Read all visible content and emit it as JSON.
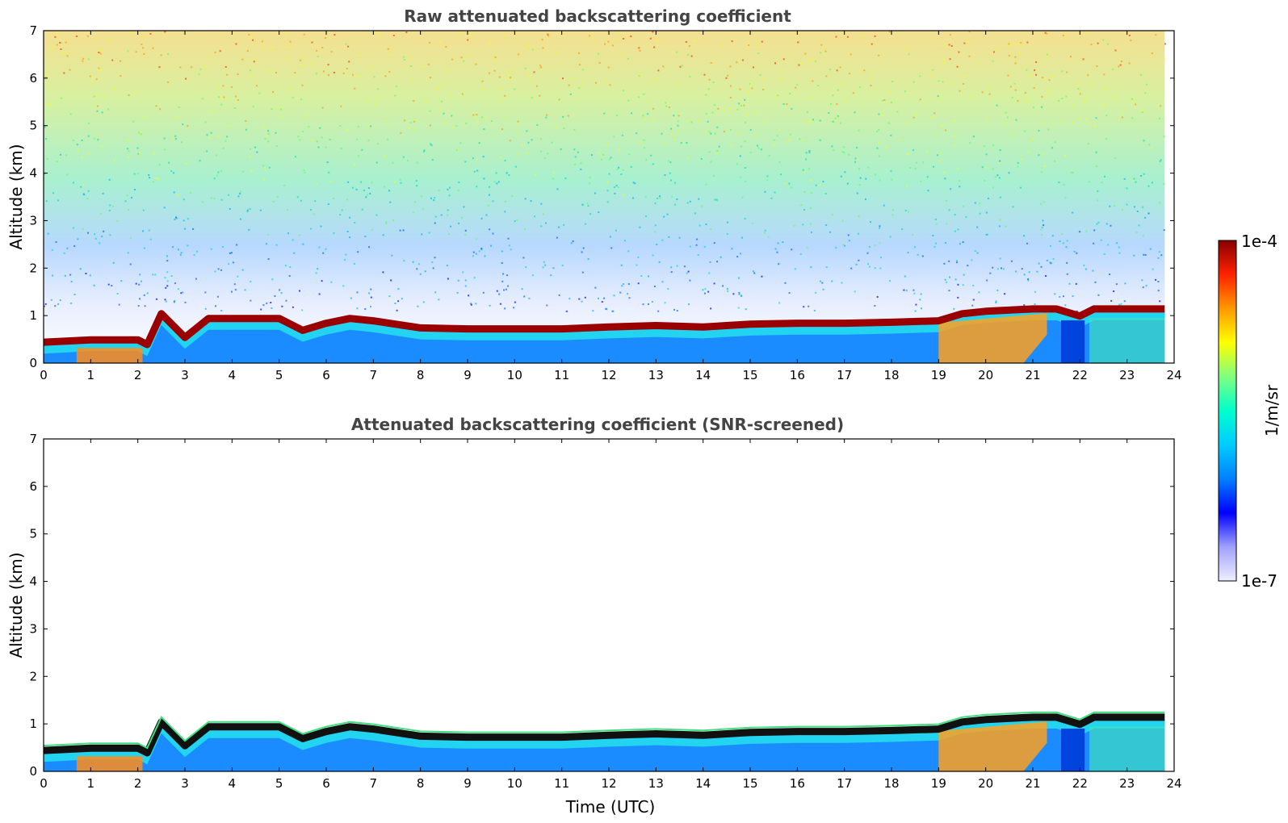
{
  "chart_data": [
    {
      "type": "heatmap",
      "title": "Raw attenuated backscattering coefficient",
      "xlabel": "",
      "ylabel": "Altitude (km)",
      "xlim": [
        0,
        24
      ],
      "ylim": [
        0,
        7
      ],
      "x_ticks": [
        "0",
        "1",
        "2",
        "3",
        "4",
        "5",
        "6",
        "7",
        "8",
        "9",
        "10",
        "11",
        "12",
        "13",
        "14",
        "15",
        "16",
        "17",
        "18",
        "19",
        "20",
        "21",
        "22",
        "23",
        "24"
      ],
      "y_ticks": [
        "0",
        "1",
        "2",
        "3",
        "4",
        "5",
        "6",
        "7"
      ],
      "screened": false,
      "layer_top_km": [
        [
          0,
          0.5
        ],
        [
          1,
          0.55
        ],
        [
          2,
          0.55
        ],
        [
          2.2,
          0.45
        ],
        [
          2.5,
          1.1
        ],
        [
          3,
          0.6
        ],
        [
          3.5,
          1.0
        ],
        [
          4,
          1.0
        ],
        [
          5,
          1.0
        ],
        [
          5.5,
          0.75
        ],
        [
          6,
          0.9
        ],
        [
          6.5,
          1.0
        ],
        [
          7,
          0.95
        ],
        [
          8,
          0.8
        ],
        [
          9,
          0.78
        ],
        [
          10,
          0.78
        ],
        [
          11,
          0.78
        ],
        [
          12,
          0.82
        ],
        [
          13,
          0.85
        ],
        [
          14,
          0.82
        ],
        [
          15,
          0.88
        ],
        [
          16,
          0.9
        ],
        [
          17,
          0.9
        ],
        [
          18,
          0.92
        ],
        [
          19,
          0.95
        ],
        [
          19.5,
          1.1
        ],
        [
          20,
          1.15
        ],
        [
          21,
          1.2
        ],
        [
          21.5,
          1.2
        ],
        [
          22,
          1.05
        ],
        [
          22.3,
          1.2
        ],
        [
          23,
          1.2
        ],
        [
          23.8,
          1.2
        ]
      ]
    },
    {
      "type": "heatmap",
      "title": "Attenuated backscattering coefficient (SNR-screened)",
      "xlabel": "Time (UTC)",
      "ylabel": "Altitude (km)",
      "xlim": [
        0,
        24
      ],
      "ylim": [
        0,
        7
      ],
      "x_ticks": [
        "0",
        "1",
        "2",
        "3",
        "4",
        "5",
        "6",
        "7",
        "8",
        "9",
        "10",
        "11",
        "12",
        "13",
        "14",
        "15",
        "16",
        "17",
        "18",
        "19",
        "20",
        "21",
        "22",
        "23",
        "24"
      ],
      "y_ticks": [
        "0",
        "1",
        "2",
        "3",
        "4",
        "5",
        "6",
        "7"
      ],
      "screened": true,
      "layer_top_km": [
        [
          0,
          0.5
        ],
        [
          1,
          0.55
        ],
        [
          2,
          0.55
        ],
        [
          2.2,
          0.45
        ],
        [
          2.5,
          1.1
        ],
        [
          3,
          0.6
        ],
        [
          3.5,
          1.0
        ],
        [
          4,
          1.0
        ],
        [
          5,
          1.0
        ],
        [
          5.5,
          0.75
        ],
        [
          6,
          0.9
        ],
        [
          6.5,
          1.0
        ],
        [
          7,
          0.95
        ],
        [
          8,
          0.8
        ],
        [
          9,
          0.78
        ],
        [
          10,
          0.78
        ],
        [
          11,
          0.78
        ],
        [
          12,
          0.82
        ],
        [
          13,
          0.85
        ],
        [
          14,
          0.82
        ],
        [
          15,
          0.88
        ],
        [
          16,
          0.9
        ],
        [
          17,
          0.9
        ],
        [
          18,
          0.92
        ],
        [
          19,
          0.95
        ],
        [
          19.5,
          1.1
        ],
        [
          20,
          1.15
        ],
        [
          21,
          1.2
        ],
        [
          21.5,
          1.2
        ],
        [
          22,
          1.05
        ],
        [
          22.3,
          1.2
        ],
        [
          23,
          1.2
        ],
        [
          23.8,
          1.2
        ]
      ]
    }
  ],
  "colorbar": {
    "label": "1/m/sr",
    "max_label": "1e-4",
    "min_label": "1e-7",
    "scale": "log",
    "colors": [
      "#eeeeff",
      "#a0a0ff",
      "#0000ff",
      "#0080ff",
      "#00ccff",
      "#00ffcc",
      "#80ff80",
      "#ffff00",
      "#ff9900",
      "#ff2200",
      "#880000"
    ]
  }
}
